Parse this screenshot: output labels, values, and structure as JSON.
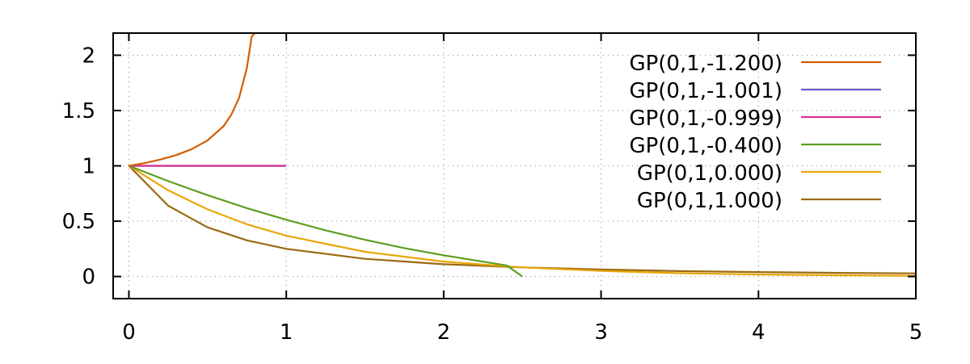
{
  "chart_data": {
    "type": "line",
    "xlim": [
      -0.1,
      5
    ],
    "ylim": [
      -0.2,
      2.2
    ],
    "xticks": [
      0,
      1,
      2,
      3,
      4,
      5
    ],
    "yticks": [
      0,
      0.5,
      1,
      1.5,
      2
    ],
    "xtick_labels": [
      "0",
      "1",
      "2",
      "3",
      "4",
      "5"
    ],
    "ytick_labels": [
      "0",
      "0.5",
      "1",
      "1.5",
      "2"
    ],
    "grid": true,
    "legend_position": "top-right",
    "series": [
      {
        "name": "GP(0,1,-1.200)",
        "color": "#d45e00",
        "points": [
          [
            0,
            1.0
          ],
          [
            0.1,
            1.025
          ],
          [
            0.2,
            1.057
          ],
          [
            0.3,
            1.097
          ],
          [
            0.4,
            1.152
          ],
          [
            0.5,
            1.23
          ],
          [
            0.6,
            1.357
          ],
          [
            0.65,
            1.46
          ],
          [
            0.7,
            1.615
          ],
          [
            0.75,
            1.888
          ],
          [
            0.78,
            2.168
          ],
          [
            0.8,
            2.2
          ]
        ]
      },
      {
        "name": "GP(0,1,-1.001)",
        "color": "#6a58c8",
        "points": [
          [
            0,
            1.0
          ],
          [
            0.999,
            1.0
          ]
        ]
      },
      {
        "name": "GP(0,1,-0.999)",
        "color": "#d6338f",
        "points": [
          [
            0,
            1.0
          ],
          [
            0.999,
            1.0
          ]
        ]
      },
      {
        "name": "GP(0,1,-0.400)",
        "color": "#5aa020",
        "points": [
          [
            0,
            1.0
          ],
          [
            0.25,
            0.862
          ],
          [
            0.5,
            0.735
          ],
          [
            0.75,
            0.618
          ],
          [
            1.0,
            0.513
          ],
          [
            1.25,
            0.417
          ],
          [
            1.5,
            0.332
          ],
          [
            1.75,
            0.257
          ],
          [
            2.0,
            0.192
          ],
          [
            2.25,
            0.134
          ],
          [
            2.4,
            0.1
          ],
          [
            2.5,
            0.0
          ]
        ]
      },
      {
        "name": "GP(0,1,0.000)",
        "color": "#e8a60a",
        "points": [
          [
            0,
            1.0
          ],
          [
            0.25,
            0.779
          ],
          [
            0.5,
            0.607
          ],
          [
            0.75,
            0.472
          ],
          [
            1.0,
            0.368
          ],
          [
            1.5,
            0.223
          ],
          [
            2.0,
            0.135
          ],
          [
            2.5,
            0.082
          ],
          [
            3.0,
            0.05
          ],
          [
            3.5,
            0.03
          ],
          [
            4.0,
            0.018
          ],
          [
            4.5,
            0.011
          ],
          [
            5.0,
            0.007
          ]
        ]
      },
      {
        "name": "GP(0,1,1.000)",
        "color": "#9b6a12",
        "points": [
          [
            0,
            1.0
          ],
          [
            0.25,
            0.64
          ],
          [
            0.5,
            0.444
          ],
          [
            0.75,
            0.327
          ],
          [
            1.0,
            0.25
          ],
          [
            1.5,
            0.16
          ],
          [
            2.0,
            0.111
          ],
          [
            2.5,
            0.082
          ],
          [
            3.0,
            0.063
          ],
          [
            3.5,
            0.049
          ],
          [
            4.0,
            0.04
          ],
          [
            4.5,
            0.033
          ],
          [
            5.0,
            0.028
          ]
        ]
      }
    ]
  }
}
